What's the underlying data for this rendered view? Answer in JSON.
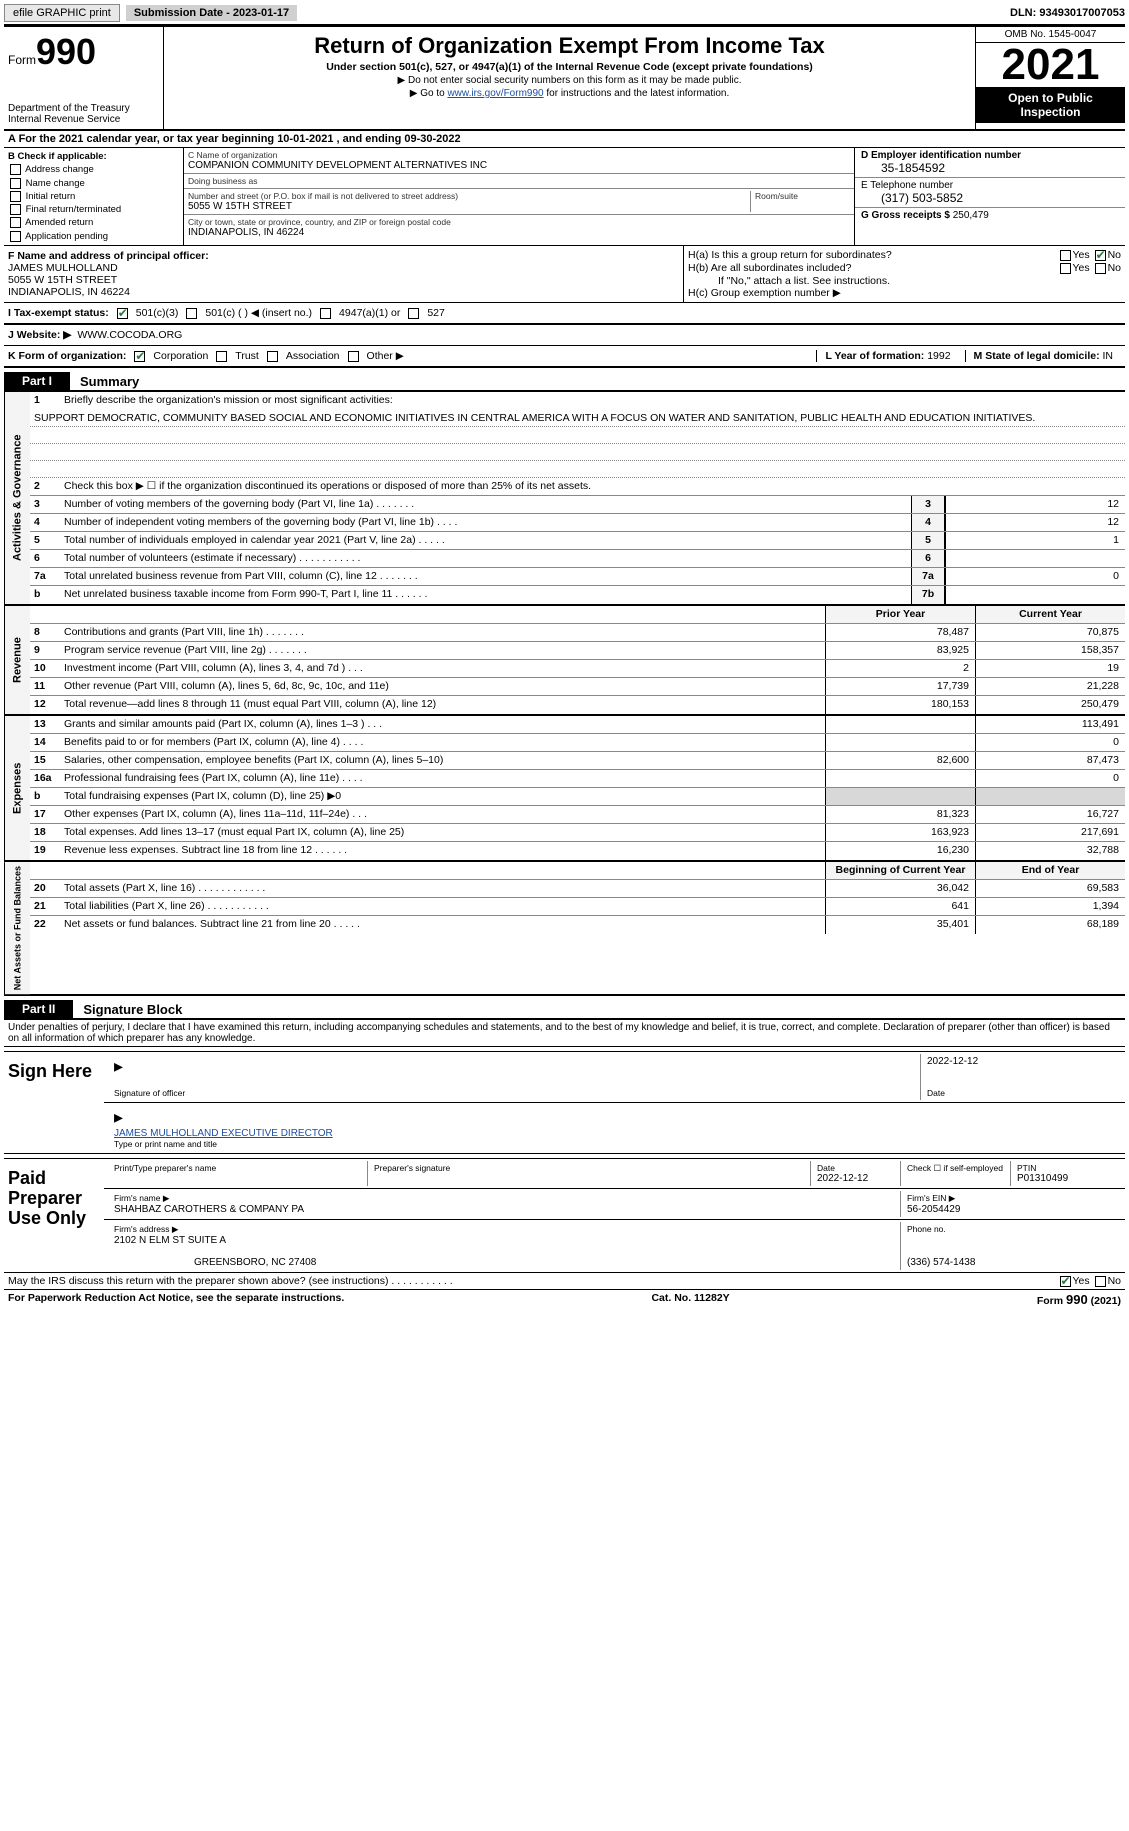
{
  "top": {
    "efile": "efile GRAPHIC print",
    "sub_date": "Submission Date - 2023-01-17",
    "dln": "DLN: 93493017007053"
  },
  "header": {
    "form_label": "Form",
    "form_num": "990",
    "dept": "Department of the Treasury",
    "irs": "Internal Revenue Service",
    "title": "Return of Organization Exempt From Income Tax",
    "sub1": "Under section 501(c), 527, or 4947(a)(1) of the Internal Revenue Code (except private foundations)",
    "sub2": "▶ Do not enter social security numbers on this form as it may be made public.",
    "sub3_pre": "▶ Go to ",
    "sub3_link": "www.irs.gov/Form990",
    "sub3_post": " for instructions and the latest information.",
    "omb": "OMB No. 1545-0047",
    "year": "2021",
    "inspect": "Open to Public Inspection"
  },
  "row_a": "A For the 2021 calendar year, or tax year beginning 10-01-2021    , and ending 09-30-2022",
  "col_b": {
    "title": "B Check if applicable:",
    "items": [
      "Address change",
      "Name change",
      "Initial return",
      "Final return/terminated",
      "Amended return",
      "Application pending"
    ]
  },
  "col_c": {
    "name_lbl": "C Name of organization",
    "name": "COMPANION COMMUNITY DEVELOPMENT ALTERNATIVES INC",
    "dba_lbl": "Doing business as",
    "dba": "",
    "addr_lbl": "Number and street (or P.O. box if mail is not delivered to street address)",
    "room_lbl": "Room/suite",
    "addr": "5055 W 15TH STREET",
    "city_lbl": "City or town, state or province, country, and ZIP or foreign postal code",
    "city": "INDIANAPOLIS, IN  46224"
  },
  "col_d": {
    "d_lbl": "D Employer identification number",
    "d_val": "35-1854592",
    "e_lbl": "E Telephone number",
    "e_val": "(317) 503-5852",
    "g_lbl": "G Gross receipts $",
    "g_val": "250,479"
  },
  "row_f": {
    "lbl": "F Name and address of principal officer:",
    "name": "JAMES MULHOLLAND",
    "addr1": "5055 W 15TH STREET",
    "addr2": "INDIANAPOLIS, IN  46224"
  },
  "row_h": {
    "ha": "H(a)  Is this a group return for subordinates?",
    "hb": "H(b)  Are all subordinates included?",
    "hb_note": "If \"No,\" attach a list. See instructions.",
    "hc": "H(c)  Group exemption number ▶",
    "yes": "Yes",
    "no": "No"
  },
  "row_i": {
    "lbl": "I   Tax-exempt status:",
    "o1": "501(c)(3)",
    "o2": "501(c) (  ) ◀ (insert no.)",
    "o3": "4947(a)(1) or",
    "o4": "527"
  },
  "row_j": {
    "lbl": "J   Website: ▶",
    "val": "WWW.COCODA.ORG"
  },
  "row_k": {
    "lbl": "K Form of organization:",
    "o1": "Corporation",
    "o2": "Trust",
    "o3": "Association",
    "o4": "Other ▶",
    "l_lbl": "L Year of formation:",
    "l_val": "1992",
    "m_lbl": "M State of legal domicile:",
    "m_val": "IN"
  },
  "part1": {
    "tab": "Part I",
    "title": "Summary"
  },
  "summary": {
    "q1_lbl": "Briefly describe the organization's mission or most significant activities:",
    "q1_val": "SUPPORT DEMOCRATIC, COMMUNITY BASED SOCIAL AND ECONOMIC INITIATIVES IN CENTRAL AMERICA WITH A FOCUS ON WATER AND SANITATION, PUBLIC HEALTH AND EDUCATION INITIATIVES.",
    "q2": "Check this box ▶ ☐ if the organization discontinued its operations or disposed of more than 25% of its net assets.",
    "rows_ag": [
      {
        "n": "3",
        "label": "Number of voting members of the governing body (Part VI, line 1a)   .   .   .   .   .   .   .",
        "box": "3",
        "val": "12"
      },
      {
        "n": "4",
        "label": "Number of independent voting members of the governing body (Part VI, line 1b)   .   .   .   .",
        "box": "4",
        "val": "12"
      },
      {
        "n": "5",
        "label": "Total number of individuals employed in calendar year 2021 (Part V, line 2a)   .   .   .   .   .",
        "box": "5",
        "val": "1"
      },
      {
        "n": "6",
        "label": "Total number of volunteers (estimate if necessary)   .   .   .   .   .   .   .   .   .   .   .",
        "box": "6",
        "val": ""
      },
      {
        "n": "7a",
        "label": "Total unrelated business revenue from Part VIII, column (C), line 12   .   .   .   .   .   .   .",
        "box": "7a",
        "val": "0"
      },
      {
        "n": "b",
        "label": "Net unrelated business taxable income from Form 990-T, Part I, line 11   .   .   .   .   .   .",
        "box": "7b",
        "val": ""
      }
    ],
    "hdr_prior": "Prior Year",
    "hdr_curr": "Current Year",
    "revenue": [
      {
        "n": "8",
        "label": "Contributions and grants (Part VIII, line 1h)   .   .   .   .   .   .   .",
        "p": "78,487",
        "c": "70,875"
      },
      {
        "n": "9",
        "label": "Program service revenue (Part VIII, line 2g)   .   .   .   .   .   .   .",
        "p": "83,925",
        "c": "158,357"
      },
      {
        "n": "10",
        "label": "Investment income (Part VIII, column (A), lines 3, 4, and 7d )   .   .   .",
        "p": "2",
        "c": "19"
      },
      {
        "n": "11",
        "label": "Other revenue (Part VIII, column (A), lines 5, 6d, 8c, 9c, 10c, and 11e)",
        "p": "17,739",
        "c": "21,228"
      },
      {
        "n": "12",
        "label": "Total revenue—add lines 8 through 11 (must equal Part VIII, column (A), line 12)",
        "p": "180,153",
        "c": "250,479"
      }
    ],
    "expenses": [
      {
        "n": "13",
        "label": "Grants and similar amounts paid (Part IX, column (A), lines 1–3 )   .   .   .",
        "p": "",
        "c": "113,491"
      },
      {
        "n": "14",
        "label": "Benefits paid to or for members (Part IX, column (A), line 4)   .   .   .   .",
        "p": "",
        "c": "0"
      },
      {
        "n": "15",
        "label": "Salaries, other compensation, employee benefits (Part IX, column (A), lines 5–10)",
        "p": "82,600",
        "c": "87,473"
      },
      {
        "n": "16a",
        "label": "Professional fundraising fees (Part IX, column (A), line 11e)   .   .   .   .",
        "p": "",
        "c": "0"
      },
      {
        "n": "b",
        "label": "Total fundraising expenses (Part IX, column (D), line 25) ▶0",
        "p": "",
        "c": "",
        "shaded": true
      },
      {
        "n": "17",
        "label": "Other expenses (Part IX, column (A), lines 11a–11d, 11f–24e)   .   .   .",
        "p": "81,323",
        "c": "16,727"
      },
      {
        "n": "18",
        "label": "Total expenses. Add lines 13–17 (must equal Part IX, column (A), line 25)",
        "p": "163,923",
        "c": "217,691"
      },
      {
        "n": "19",
        "label": "Revenue less expenses. Subtract line 18 from line 12   .   .   .   .   .   .",
        "p": "16,230",
        "c": "32,788"
      }
    ],
    "hdr_begin": "Beginning of Current Year",
    "hdr_end": "End of Year",
    "net": [
      {
        "n": "20",
        "label": "Total assets (Part X, line 16)   .   .   .   .   .   .   .   .   .   .   .   .",
        "p": "36,042",
        "c": "69,583"
      },
      {
        "n": "21",
        "label": "Total liabilities (Part X, line 26)   .   .   .   .   .   .   .   .   .   .   .",
        "p": "641",
        "c": "1,394"
      },
      {
        "n": "22",
        "label": "Net assets or fund balances. Subtract line 21 from line 20   .   .   .   .   .",
        "p": "35,401",
        "c": "68,189"
      }
    ]
  },
  "side_labels": {
    "ag": "Activities & Governance",
    "rev": "Revenue",
    "exp": "Expenses",
    "net": "Net Assets or Fund Balances"
  },
  "part2": {
    "tab": "Part II",
    "title": "Signature Block"
  },
  "penalty": "Under penalties of perjury, I declare that I have examined this return, including accompanying schedules and statements, and to the best of my knowledge and belief, it is true, correct, and complete. Declaration of preparer (other than officer) is based on all information of which preparer has any knowledge.",
  "sign": {
    "left": "Sign Here",
    "sig_lbl": "Signature of officer",
    "date_lbl": "Date",
    "date_val": "2022-12-12",
    "name": "JAMES MULHOLLAND  EXECUTIVE DIRECTOR",
    "name_lbl": "Type or print name and title"
  },
  "paid": {
    "left1": "Paid",
    "left2": "Preparer",
    "left3": "Use Only",
    "print_lbl": "Print/Type preparer's name",
    "sig_lbl": "Preparer's signature",
    "date_lbl": "Date",
    "date_val": "2022-12-12",
    "check_lbl": "Check ☐ if self-employed",
    "ptin_lbl": "PTIN",
    "ptin_val": "P01310499",
    "firm_name_lbl": "Firm's name      ▶",
    "firm_name": "SHAHBAZ CAROTHERS & COMPANY PA",
    "firm_ein_lbl": "Firm's EIN ▶",
    "firm_ein": "56-2054429",
    "firm_addr_lbl": "Firm's address ▶",
    "firm_addr1": "2102 N ELM ST SUITE A",
    "firm_addr2": "GREENSBORO, NC  27408",
    "phone_lbl": "Phone no.",
    "phone": "(336) 574-1438"
  },
  "discuss": {
    "q": "May the IRS discuss this return with the preparer shown above? (see instructions)   .   .   .   .   .   .   .   .   .   .   .",
    "yes": "Yes",
    "no": "No"
  },
  "footer": {
    "notice": "For Paperwork Reduction Act Notice, see the separate instructions.",
    "cat": "Cat. No. 11282Y",
    "form": "Form 990 (2021)"
  }
}
